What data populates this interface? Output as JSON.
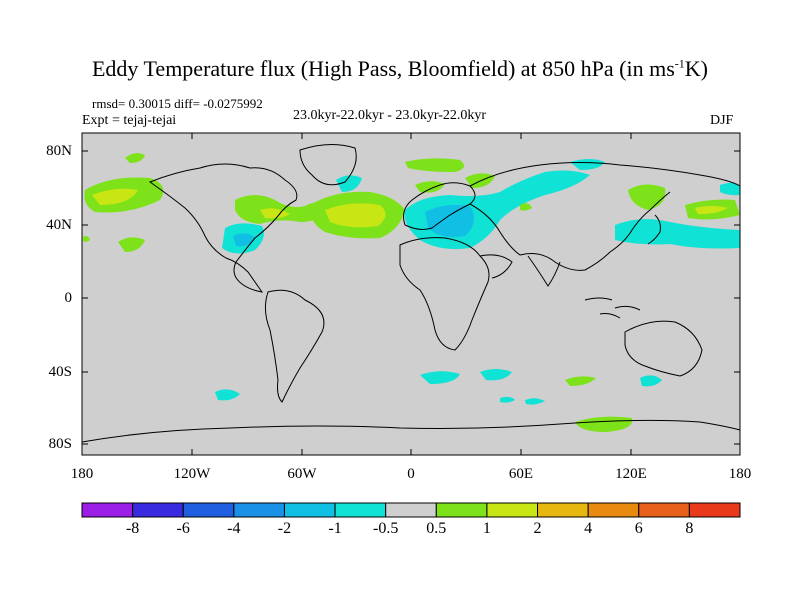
{
  "title_main": "Eddy Temperature flux (High Pass, Bloomfield) at 850 hPa (in ms",
  "title_sup": "-1",
  "title_end": "K)",
  "rmsd_text": "rmsd= 0.30015 diff= -0.0275992",
  "period_text": "23.0kyr-22.0kyr - 23.0kyr-22.0kyr",
  "expt_text": "Expt = tejaj-tejai",
  "season": "DJF",
  "axes": {
    "lat_ticks": [
      "80N",
      "40N",
      "0",
      "40S",
      "80S"
    ],
    "lon_ticks": [
      "180",
      "120W",
      "60W",
      "0",
      "60E",
      "120E",
      "180"
    ]
  },
  "colorbar": {
    "levels": [
      "-8",
      "-6",
      "-4",
      "-2",
      "-1",
      "-0.5",
      "0.5",
      "1",
      "2",
      "4",
      "6",
      "8"
    ],
    "colors": [
      "#9a1ee6",
      "#3a2adf",
      "#1f5fe0",
      "#1991e6",
      "#12bfe4",
      "#10e2d6",
      "#cfcfcf",
      "#7ee21a",
      "#c8e614",
      "#e6b80f",
      "#e88a0f",
      "#e8601a",
      "#e83a1a"
    ]
  },
  "map": {
    "background": "#cfcfcf",
    "coastline": "#000000"
  }
}
